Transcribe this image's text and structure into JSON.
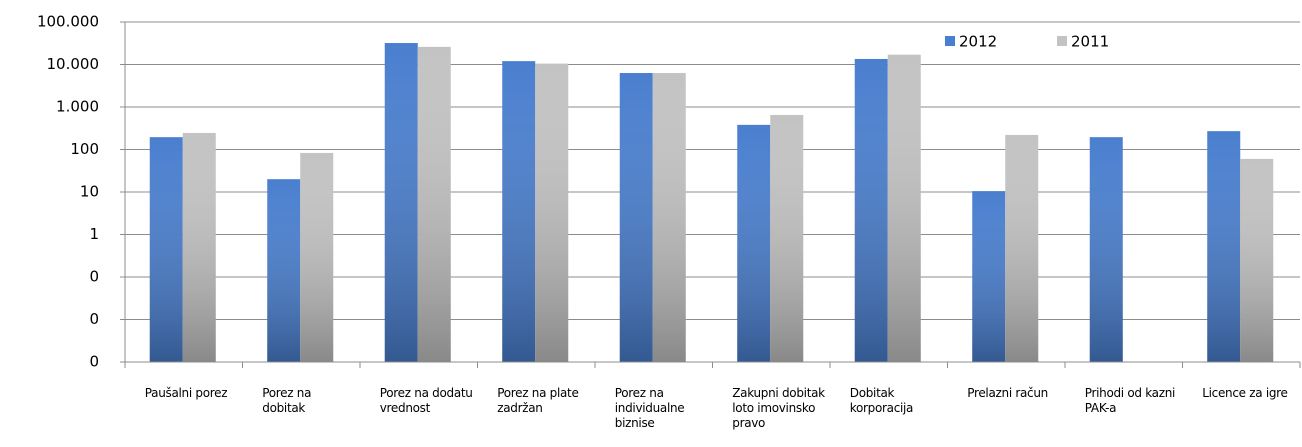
{
  "chart_data": {
    "type": "bar",
    "log_scale": true,
    "grid": true,
    "legend_position": "top-right",
    "categories": [
      "Paušalni porez",
      "Porez na dobitak",
      "Porez na dodatu vrednost",
      "Porez na plate zadržan",
      "Porez na individualne biznise",
      "Zakupni dobitak loto imovinsko pravo",
      "Dobitak korporacija",
      "Prelazni račun",
      "Prihodi od kazni PAK-a",
      "Licence za igre"
    ],
    "series": [
      {
        "name": "2012",
        "color": "#4a7fcf",
        "values": [
          195,
          20,
          32000,
          12000,
          6300,
          380,
          13500,
          10.5,
          195,
          270
        ]
      },
      {
        "name": "2011",
        "color": "#c3c3c3",
        "values": [
          245,
          83,
          26000,
          10500,
          6300,
          650,
          17000,
          220,
          null,
          60
        ]
      }
    ],
    "ylim": [
      0.001,
      100000
    ],
    "yticks": [
      {
        "value": 100000,
        "label": "100.000"
      },
      {
        "value": 10000,
        "label": "10.000"
      },
      {
        "value": 1000,
        "label": "1.000"
      },
      100,
      10,
      1,
      {
        "value": 0.1,
        "label": "0"
      },
      {
        "value": 0.01,
        "label": "0"
      },
      {
        "value": 0.001,
        "label": "0"
      }
    ]
  }
}
